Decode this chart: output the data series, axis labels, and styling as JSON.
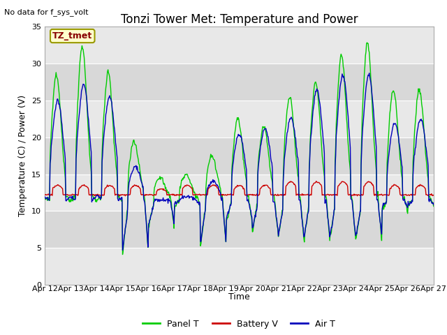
{
  "title": "Tonzi Tower Met: Temperature and Power",
  "top_left_note": "No data for f_sys_volt",
  "xlabel": "Time",
  "ylabel": "Temperature (C) / Power (V)",
  "ylim": [
    0,
    35
  ],
  "yticks": [
    0,
    5,
    10,
    15,
    20,
    25,
    30,
    35
  ],
  "xtick_labels": [
    "Apr 12",
    "Apr 13",
    "Apr 14",
    "Apr 15",
    "Apr 16",
    "Apr 17",
    "Apr 18",
    "Apr 19",
    "Apr 20",
    "Apr 21",
    "Apr 22",
    "Apr 23",
    "Apr 24",
    "Apr 25",
    "Apr 26",
    "Apr 27"
  ],
  "legend_entries": [
    "Panel T",
    "Battery V",
    "Air T"
  ],
  "line_colors": [
    "#00cc00",
    "#cc0000",
    "#0000bb"
  ],
  "annotation_label": "TZ_tmet",
  "annotation_color": "#880000",
  "annotation_bg": "#ffffcc",
  "annotation_edge": "#999900",
  "fig_bg": "#ffffff",
  "plot_bg_light": "#e8e8e8",
  "plot_bg_dark": "#d0d0d0",
  "grid_color": "#ffffff",
  "title_fontsize": 12,
  "axis_fontsize": 9,
  "tick_fontsize": 8,
  "note_fontsize": 8
}
